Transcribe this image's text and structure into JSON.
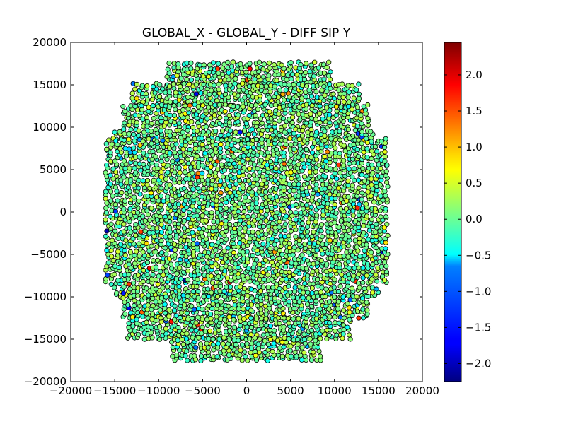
{
  "chart_data": {
    "type": "scatter",
    "title": "GLOBAL_X - GLOBAL_Y - DIFF SIP Y",
    "xlabel": "",
    "ylabel": "",
    "xlim": [
      -20000,
      20000
    ],
    "ylim": [
      -20000,
      20000
    ],
    "xticks": [
      -20000,
      -15000,
      -10000,
      -5000,
      0,
      5000,
      10000,
      15000,
      20000
    ],
    "xtick_labels": [
      "−20000",
      "−15000",
      "−10000",
      "−5000",
      "0",
      "5000",
      "10000",
      "15000",
      "20000"
    ],
    "yticks": [
      -20000,
      -15000,
      -10000,
      -5000,
      0,
      5000,
      10000,
      15000,
      20000
    ],
    "ytick_labels": [
      "−20000",
      "−15000",
      "−10000",
      "−5000",
      "0",
      "5000",
      "10000",
      "15000",
      "20000"
    ],
    "grid": false,
    "colormap": "jet",
    "colorbar": {
      "range": [
        -2.25,
        2.45
      ],
      "ticks": [
        -2.0,
        -1.5,
        -1.0,
        -0.5,
        0.0,
        0.5,
        1.0,
        1.5,
        2.0
      ],
      "tick_labels": [
        "−2.0",
        "−1.5",
        "−1.0",
        "−0.5",
        "0.0",
        "0.5",
        "1.0",
        "1.5",
        "2.0"
      ]
    },
    "marker_edge_color": "#000000",
    "footprint": {
      "x_extent": [
        -16000,
        16000
      ],
      "y_extent": [
        -17500,
        17500
      ],
      "rows": [
        {
          "y": [
            15000,
            17500
          ],
          "x": [
            -9000,
            9500
          ]
        },
        {
          "y": [
            12500,
            15000
          ],
          "x": [
            -13000,
            13000
          ]
        },
        {
          "y": [
            10000,
            12500
          ],
          "x": [
            -14000,
            14000
          ]
        },
        {
          "y": [
            8500,
            10000
          ],
          "x": [
            -15000,
            14500
          ]
        },
        {
          "y": [
            -8500,
            8500
          ],
          "x": [
            -16000,
            16000
          ]
        },
        {
          "y": [
            -10000,
            -8500
          ],
          "x": [
            -15000,
            15000
          ]
        },
        {
          "y": [
            -12500,
            -10000
          ],
          "x": [
            -14000,
            14000
          ]
        },
        {
          "y": [
            -15000,
            -12500
          ],
          "x": [
            -13500,
            12000
          ]
        },
        {
          "y": [
            -17500,
            -15000
          ],
          "x": [
            -8500,
            8500
          ]
        }
      ],
      "value_mean": 0.05,
      "value_spread": 0.4,
      "value_range": [
        -2.25,
        2.45
      ]
    }
  }
}
